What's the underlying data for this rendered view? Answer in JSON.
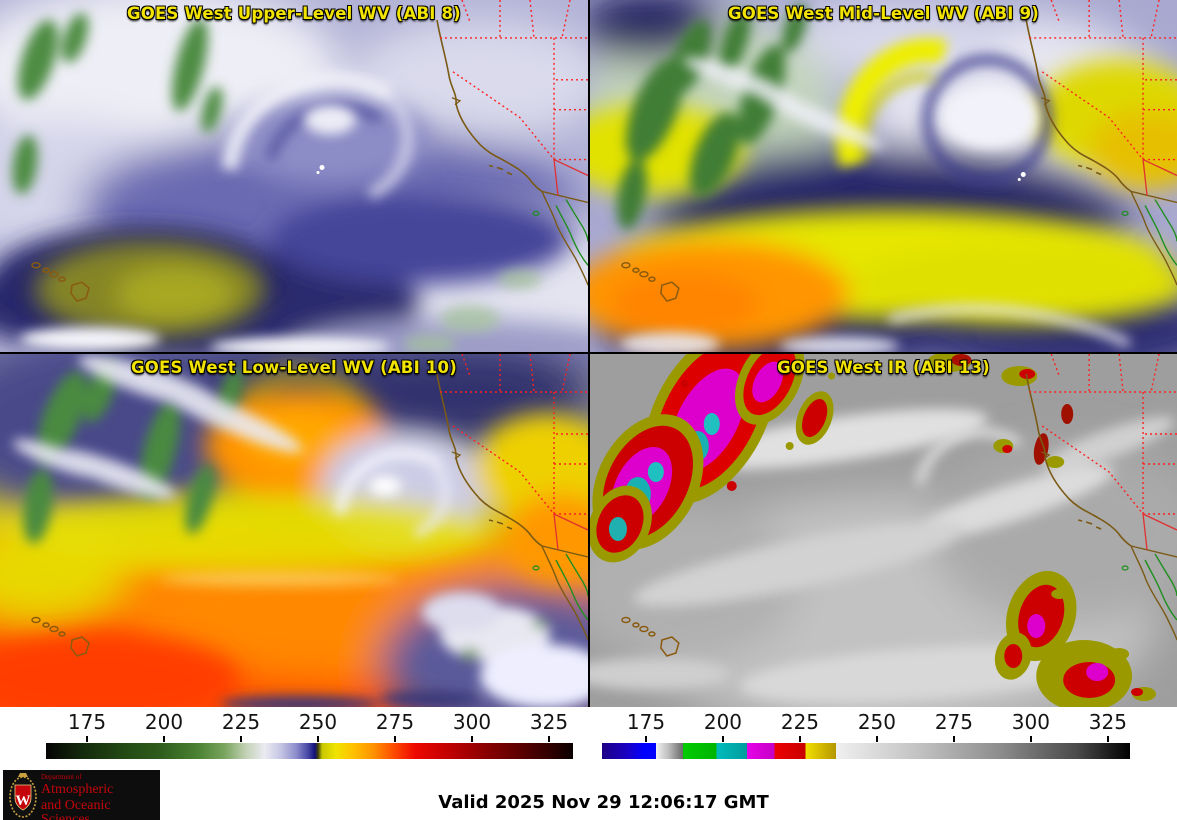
{
  "panels": [
    {
      "id": "abi8",
      "title": "GOES West Upper-Level WV (ABI 8)"
    },
    {
      "id": "abi9",
      "title": "GOES West Mid-Level WV (ABI 9)"
    },
    {
      "id": "abi10",
      "title": "GOES West Low-Level WV (ABI 10)"
    },
    {
      "id": "abi13",
      "title": "GOES West IR (ABI 13)"
    }
  ],
  "colorbars": [
    {
      "id": "wv-colorbar",
      "tick_labels": [
        "175",
        "200",
        "225",
        "250",
        "275",
        "300",
        "325"
      ],
      "tick_geometry": {
        "first_pct": 7.78,
        "step_pct": 14.61
      },
      "gradient": [
        {
          "p": 0,
          "c": "#040404"
        },
        {
          "p": 7,
          "c": "#142a0c"
        },
        {
          "p": 15,
          "c": "#234a14"
        },
        {
          "p": 22,
          "c": "#2f5e1c"
        },
        {
          "p": 29,
          "c": "#4c8334"
        },
        {
          "p": 34,
          "c": "#7ba560"
        },
        {
          "p": 38,
          "c": "#c3d2b6"
        },
        {
          "p": 41.5,
          "c": "#ebebf2"
        },
        {
          "p": 44.5,
          "c": "#c6c6e4"
        },
        {
          "p": 47.5,
          "c": "#8c8ccd"
        },
        {
          "p": 49.8,
          "c": "#4444a4"
        },
        {
          "p": 51,
          "c": "#12127a"
        },
        {
          "p": 51.6,
          "c": "#3c3c10"
        },
        {
          "p": 52.4,
          "c": "#c8c800"
        },
        {
          "p": 55,
          "c": "#f0e400"
        },
        {
          "p": 58,
          "c": "#ffc400"
        },
        {
          "p": 62,
          "c": "#ff9400"
        },
        {
          "p": 66,
          "c": "#ff4c00"
        },
        {
          "p": 70,
          "c": "#ee0800"
        },
        {
          "p": 76,
          "c": "#c40000"
        },
        {
          "p": 83,
          "c": "#8e0000"
        },
        {
          "p": 90,
          "c": "#5c0000"
        },
        {
          "p": 96,
          "c": "#2e0000"
        },
        {
          "p": 100,
          "c": "#0a0000"
        }
      ]
    },
    {
      "id": "ir-colorbar",
      "tick_labels": [
        "175",
        "200",
        "225",
        "250",
        "275",
        "300",
        "325"
      ],
      "tick_geometry": {
        "first_pct": 8.33,
        "step_pct": 14.58
      },
      "gradient": [
        {
          "p": 0,
          "c": "#1e0084"
        },
        {
          "p": 5,
          "c": "#1a00c8"
        },
        {
          "p": 8,
          "c": "#0000ff"
        },
        {
          "p": 10.2,
          "c": "#0000ff"
        },
        {
          "p": 10.2,
          "c": "#f2f2f2"
        },
        {
          "p": 12.5,
          "c": "#c0c0c0"
        },
        {
          "p": 15.3,
          "c": "#6a6a6a"
        },
        {
          "p": 15.3,
          "c": "#00cc00"
        },
        {
          "p": 21.7,
          "c": "#00b400"
        },
        {
          "p": 21.7,
          "c": "#00bcbc"
        },
        {
          "p": 27.5,
          "c": "#009c9c"
        },
        {
          "p": 27.5,
          "c": "#e800e8"
        },
        {
          "p": 32.7,
          "c": "#c400c4"
        },
        {
          "p": 32.7,
          "c": "#ee0000"
        },
        {
          "p": 38.5,
          "c": "#c80000"
        },
        {
          "p": 38.5,
          "c": "#f0e000"
        },
        {
          "p": 41,
          "c": "#d8c000"
        },
        {
          "p": 44.3,
          "c": "#b49600"
        },
        {
          "p": 44.3,
          "c": "#f0f0f0"
        },
        {
          "p": 60,
          "c": "#c2c2c2"
        },
        {
          "p": 75,
          "c": "#8e8e8e"
        },
        {
          "p": 90,
          "c": "#4a4a4a"
        },
        {
          "p": 100,
          "c": "#000000"
        }
      ]
    }
  ],
  "footer": {
    "valid_text": "Valid 2025 Nov 29 12:06:17 GMT"
  },
  "logo": {
    "dept_line": "Department of",
    "name_line1": "Atmospheric",
    "name_line2": "and Oceanic Sciences",
    "crest_letter": "W"
  },
  "colors": {
    "title_yellow": "#f2e300",
    "tick_text": "#141414",
    "logo_red": "#c5050c",
    "coastline_brown": "#7a5a14",
    "state_border_red": "#ff2020",
    "mexico_green": "#1f8f1f"
  }
}
